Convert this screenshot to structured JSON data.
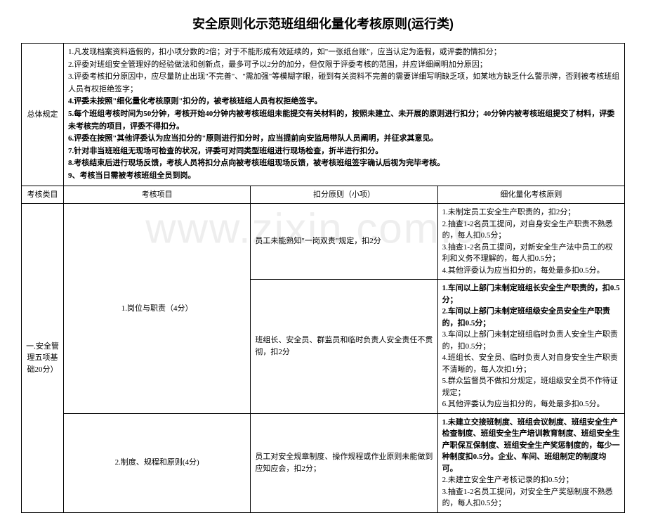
{
  "title": "安全原则化示范班组细化量化考核原则(运行类)",
  "watermark": "www.zixin.com.cn",
  "overall": {
    "label": "总体规定",
    "rules": [
      "1.凡发现档案资料造假的，扣小项分数的2倍；对于不能形成有效延续的，如\"一张纸台账\"，应当认定为造假，或评委酌情扣分；",
      "2.评委对班组安全管理好的经验做法和创新点，最多可予以2分的加分，但仅限于评委考核的范围，并应详细阐明加分原因；",
      "3.评委考核扣分原因中，应尽量防止出现\"不完善\"、\"需加强\"等模糊字眼，碰到有关资料不完善的需要详细写明缺乏项，如某地方缺乏什么警示牌，否则被考核班组人员有权拒绝签字；",
      "4.评委未按照\"细化量化考核原则\"扣分的，被考核班组人员有权拒绝签字。",
      "5.每个班组考核时间为50分钟，考核开始40分钟内被考核班组未能提交有关材料的，按照未建立、未开展的原则进行扣分；40分钟内被考核班组提交了材料，评委未考核完的项目，评委不得扣分。",
      "6.评委在按照\"其他评委认为应当扣分的\"原则进行扣分时，应当提前向安监局带队人员阐明，并征求其意见。",
      "7.针对非当班班组无现场可检查的状况，评委可对同类型班组进行现场检查，折半进行扣分。",
      "8.考核结束后进行现场反馈，考核人员将扣分点向被考核班组现场反馈，被考核班组签字确认后视为完毕考核。",
      "9、考核当日需被考核班组全员到岗。"
    ]
  },
  "headers": {
    "category": "考核类目",
    "item": "考核项目",
    "deduction": "扣分原则（小项）",
    "detail": "细化量化考核原则"
  },
  "section1": {
    "category": "一.安全管理五项基础20分）",
    "item1": {
      "name": "1.岗位与职责（4分）",
      "deduction1": "员工未能熟知\"一岗双责\"规定，扣2分",
      "detail1": [
        "1.未制定员工安全生产职责的，扣2分；",
        "2.抽查1-2名员工提问，对自身安全生产职责不熟悉的，每人扣0.5分；",
        "3.抽查1-2名员工提问，对新安全生产法中员工的权利和义务不理解的，每人扣0.5分；",
        "4.其他评委认为应当扣分的，每处最多扣0.5分。"
      ],
      "deduction2": "班组长、安全员、群监员和临时负责人安全责任不贯彻，扣2分",
      "detail2": [
        "1.车间以上部门未制定班组长安全生产职责的，扣0.5分；",
        "2.车间以上部门未制定班组级安全员安全生产职责的，扣0.5分；",
        "3.车间以上部门未制定班组临时负责人安全生产职责的，扣0.5分；",
        "4.班组长、安全员、临时负责人对自身安全生产职责不清晰的，每人次扣1分；",
        "5.群众监督员不做扣分规定，班组级安全员不作待证规定；",
        "6.其他评委认为应当扣分的，每处最多扣0.5分。"
      ]
    },
    "item2": {
      "name": "2.制度、规程和原则(4分)",
      "deduction1": "员工对安全规章制度、操作规程或作业原则未能做到应知应会，扣2分；",
      "detail1": [
        "1.未建立交接班制度、班组会议制度、班组安全生产检查制度、班组安全生产培训教育制度、班组安全生产职保互保制度、班组安全生产奖惩制度的，每少一种制度扣0.5分。企业、车间、班组制定的制度均可。",
        "2.未建立安全生产考核记录的扣0.5分；",
        "3.抽查1-2名员工提问，对安全生产奖惩制度不熟悉的，每人扣0.5分；"
      ]
    }
  }
}
